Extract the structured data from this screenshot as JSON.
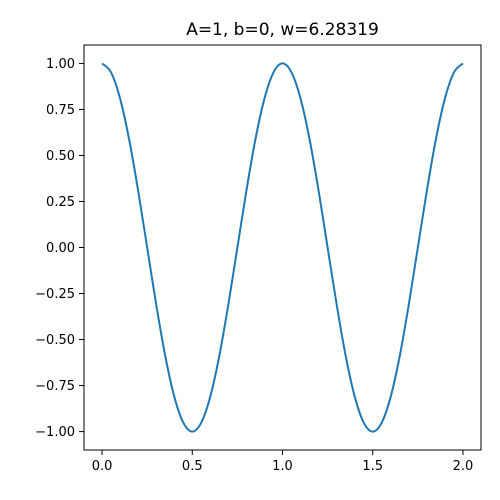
{
  "chart_data": {
    "type": "line",
    "title": "A=1, b=0, w=6.28319",
    "xlabel": "",
    "ylabel": "",
    "xlim": [
      -0.1,
      2.1
    ],
    "ylim": [
      -1.1,
      1.1
    ],
    "grid": false,
    "x_ticks": [
      {
        "value": 0.0,
        "label": "0.0"
      },
      {
        "value": 0.5,
        "label": "0.5"
      },
      {
        "value": 1.0,
        "label": "1.0"
      },
      {
        "value": 1.5,
        "label": "1.5"
      },
      {
        "value": 2.0,
        "label": "2.0"
      }
    ],
    "y_ticks": [
      {
        "value": 1.0,
        "label": "1.00"
      },
      {
        "value": 0.75,
        "label": "0.75"
      },
      {
        "value": 0.5,
        "label": "0.50"
      },
      {
        "value": 0.25,
        "label": "0.25"
      },
      {
        "value": 0.0,
        "label": "0.00"
      },
      {
        "value": -0.25,
        "label": "−0.25"
      },
      {
        "value": -0.5,
        "label": "−0.50"
      },
      {
        "value": -0.75,
        "label": "−0.75"
      },
      {
        "value": -1.0,
        "label": "−1.00"
      }
    ],
    "series": [
      {
        "color": "#1f77b4",
        "x": [
          0.0,
          0.05,
          0.1,
          0.15,
          0.2,
          0.25,
          0.3,
          0.35,
          0.4,
          0.45,
          0.5,
          0.55,
          0.6,
          0.65,
          0.7,
          0.75,
          0.8,
          0.85,
          0.9,
          0.95,
          1.0,
          1.05,
          1.1,
          1.15,
          1.2,
          1.25,
          1.3,
          1.35,
          1.4,
          1.45,
          1.5,
          1.55,
          1.6,
          1.65,
          1.7,
          1.75,
          1.8,
          1.85,
          1.9,
          1.95,
          2.0
        ],
        "y": [
          1.0,
          0.951,
          0.809,
          0.588,
          0.309,
          0.0,
          -0.309,
          -0.588,
          -0.809,
          -0.951,
          -1.0,
          -0.951,
          -0.809,
          -0.588,
          -0.309,
          0.0,
          0.309,
          0.588,
          0.809,
          0.951,
          1.0,
          0.951,
          0.809,
          0.588,
          0.309,
          0.0,
          -0.309,
          -0.588,
          -0.809,
          -0.951,
          -1.0,
          -0.951,
          -0.809,
          -0.588,
          -0.309,
          0.0,
          0.309,
          0.588,
          0.809,
          0.951,
          1.0
        ]
      }
    ]
  }
}
